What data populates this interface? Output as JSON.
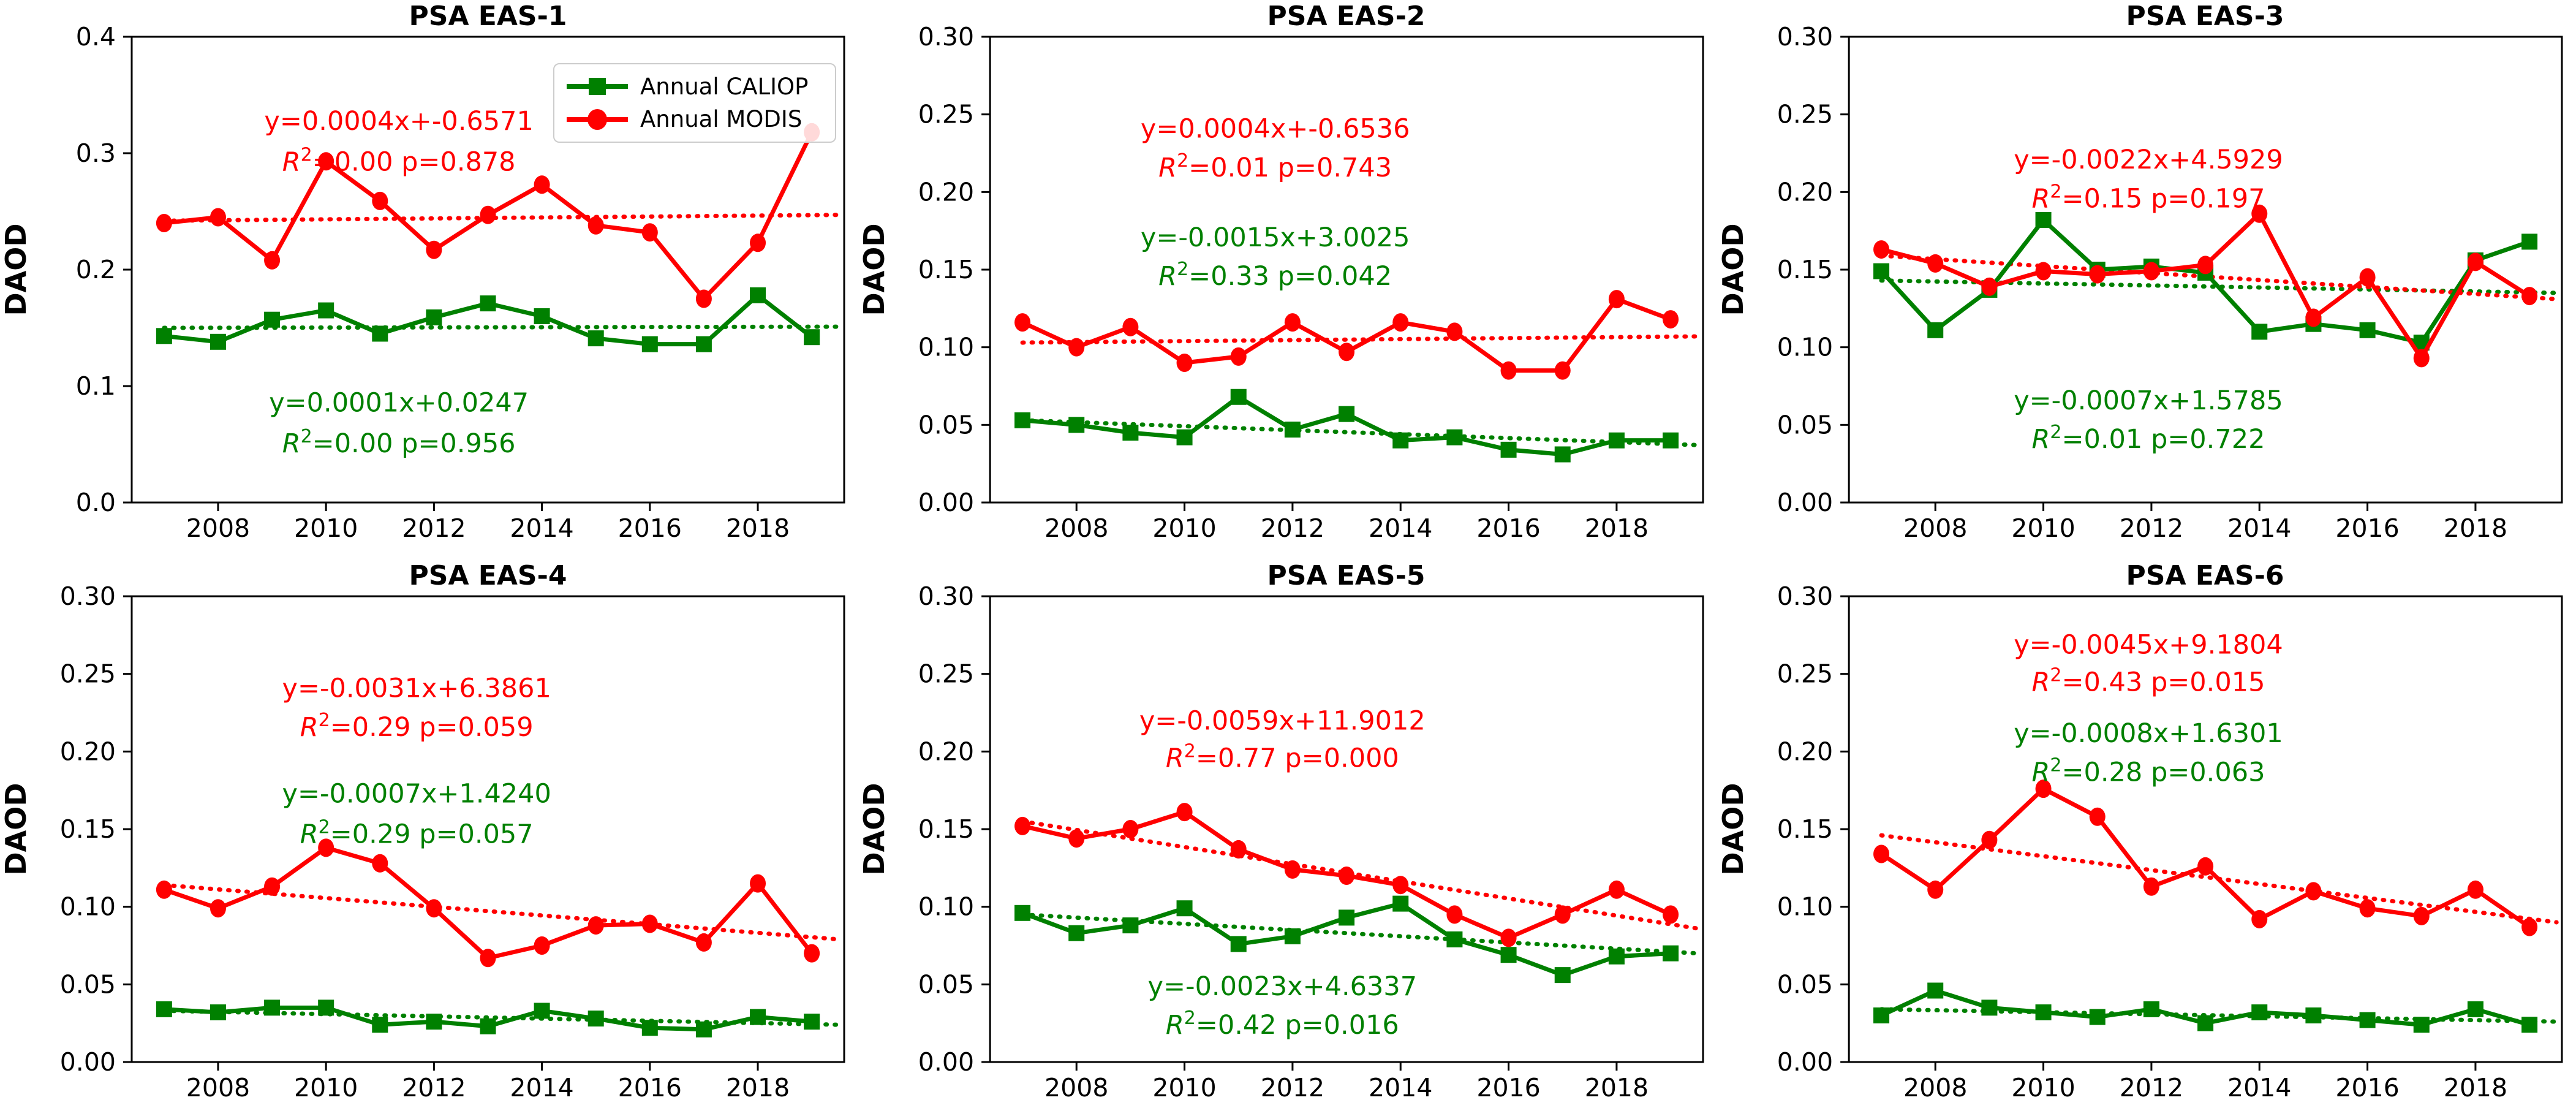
{
  "figure": {
    "ylabel": "DAOD",
    "background": "#ffffff",
    "axis_color": "#000000"
  },
  "legend": {
    "position": "top-right of first panel",
    "items": [
      {
        "label": "Annual CALIOP",
        "color": "#008000",
        "marker": "square"
      },
      {
        "label": "Annual MODIS",
        "color": "#ff0000",
        "marker": "circle"
      }
    ]
  },
  "chart_data": [
    {
      "type": "line",
      "title": "PSA EAS-1",
      "ylabel": "DAOD",
      "x": [
        2007,
        2008,
        2009,
        2010,
        2011,
        2012,
        2013,
        2014,
        2015,
        2016,
        2017,
        2018,
        2019
      ],
      "xticks": [
        2008,
        2010,
        2012,
        2014,
        2016,
        2018
      ],
      "xlim": [
        2006.4,
        2019.6
      ],
      "ylim": [
        0,
        0.4
      ],
      "yticks": [
        "0.0",
        "0.1",
        "0.2",
        "0.3",
        "0.4"
      ],
      "grid": false,
      "legend_visible": true,
      "series": [
        {
          "name": "Annual CALIOP",
          "color": "#008000",
          "marker": "square",
          "values": [
            0.143,
            0.138,
            0.157,
            0.165,
            0.145,
            0.159,
            0.171,
            0.16,
            0.141,
            0.136,
            0.136,
            0.178,
            0.142
          ],
          "trend": {
            "eq": "y=0.0001x+0.0247",
            "r2": "0.00",
            "p": "0.956",
            "start": 0.15,
            "end": 0.151
          }
        },
        {
          "name": "Annual MODIS",
          "color": "#ff0000",
          "marker": "circle",
          "values": [
            0.24,
            0.245,
            0.208,
            0.293,
            0.259,
            0.217,
            0.247,
            0.273,
            0.238,
            0.232,
            0.175,
            0.223,
            0.318
          ],
          "trend": {
            "eq": "y=0.0004x+-0.6571",
            "r2": "0.00",
            "p": "0.878",
            "start": 0.242,
            "end": 0.247
          }
        }
      ],
      "annotations": [
        {
          "series": "Annual MODIS",
          "color": "#ff0000",
          "x_frac": 0.375,
          "y_data": [
            0.328,
            0.293
          ]
        },
        {
          "series": "Annual CALIOP",
          "color": "#008000",
          "x_frac": 0.375,
          "y_data": [
            0.086,
            0.051
          ]
        }
      ]
    },
    {
      "type": "line",
      "title": "PSA EAS-2",
      "ylabel": "DAOD",
      "x": [
        2007,
        2008,
        2009,
        2010,
        2011,
        2012,
        2013,
        2014,
        2015,
        2016,
        2017,
        2018,
        2019
      ],
      "xticks": [
        2008,
        2010,
        2012,
        2014,
        2016,
        2018
      ],
      "xlim": [
        2006.4,
        2019.6
      ],
      "ylim": [
        0,
        0.3
      ],
      "yticks": [
        "0.00",
        "0.05",
        "0.10",
        "0.15",
        "0.20",
        "0.25",
        "0.30"
      ],
      "grid": false,
      "legend_visible": false,
      "series": [
        {
          "name": "Annual CALIOP",
          "color": "#008000",
          "marker": "square",
          "values": [
            0.053,
            0.05,
            0.045,
            0.042,
            0.068,
            0.047,
            0.057,
            0.04,
            0.042,
            0.034,
            0.031,
            0.04,
            0.04
          ],
          "trend": {
            "eq": "y=-0.0015x+3.0025",
            "r2": "0.33",
            "p": "0.042",
            "start": 0.053,
            "end": 0.037
          }
        },
        {
          "name": "Annual MODIS",
          "color": "#ff0000",
          "marker": "circle",
          "values": [
            0.116,
            0.1,
            0.113,
            0.09,
            0.094,
            0.116,
            0.097,
            0.116,
            0.11,
            0.085,
            0.085,
            0.131,
            0.118
          ],
          "trend": {
            "eq": "y=0.0004x+-0.6536",
            "r2": "0.01",
            "p": "0.743",
            "start": 0.103,
            "end": 0.107
          }
        }
      ],
      "annotations": [
        {
          "series": "Annual MODIS",
          "color": "#ff0000",
          "x_frac": 0.4,
          "y_data": [
            0.241,
            0.216
          ]
        },
        {
          "series": "Annual CALIOP",
          "color": "#008000",
          "x_frac": 0.4,
          "y_data": [
            0.171,
            0.146
          ]
        }
      ]
    },
    {
      "type": "line",
      "title": "PSA EAS-3",
      "ylabel": "DAOD",
      "x": [
        2007,
        2008,
        2009,
        2010,
        2011,
        2012,
        2013,
        2014,
        2015,
        2016,
        2017,
        2018,
        2019
      ],
      "xticks": [
        2008,
        2010,
        2012,
        2014,
        2016,
        2018
      ],
      "xlim": [
        2006.4,
        2019.6
      ],
      "ylim": [
        0,
        0.3
      ],
      "yticks": [
        "0.00",
        "0.05",
        "0.10",
        "0.15",
        "0.20",
        "0.25",
        "0.30"
      ],
      "grid": false,
      "legend_visible": false,
      "series": [
        {
          "name": "Annual CALIOP",
          "color": "#008000",
          "marker": "square",
          "values": [
            0.149,
            0.111,
            0.137,
            0.182,
            0.15,
            0.152,
            0.148,
            0.11,
            0.115,
            0.111,
            0.103,
            0.156,
            0.168
          ],
          "trend": {
            "eq": "y=-0.0007x+1.5785",
            "r2": "0.01",
            "p": "0.722",
            "start": 0.143,
            "end": 0.135
          }
        },
        {
          "name": "Annual MODIS",
          "color": "#ff0000",
          "marker": "circle",
          "values": [
            0.163,
            0.154,
            0.139,
            0.149,
            0.147,
            0.149,
            0.153,
            0.186,
            0.119,
            0.145,
            0.093,
            0.155,
            0.133
          ],
          "trend": {
            "eq": "y=-0.0022x+4.5929",
            "r2": "0.15",
            "p": "0.197",
            "start": 0.159,
            "end": 0.131
          }
        }
      ],
      "annotations": [
        {
          "series": "Annual MODIS",
          "color": "#ff0000",
          "x_frac": 0.42,
          "y_data": [
            0.221,
            0.196
          ]
        },
        {
          "series": "Annual CALIOP",
          "color": "#008000",
          "x_frac": 0.42,
          "y_data": [
            0.066,
            0.041
          ]
        }
      ]
    },
    {
      "type": "line",
      "title": "PSA EAS-4",
      "ylabel": "DAOD",
      "x": [
        2007,
        2008,
        2009,
        2010,
        2011,
        2012,
        2013,
        2014,
        2015,
        2016,
        2017,
        2018,
        2019
      ],
      "xticks": [
        2008,
        2010,
        2012,
        2014,
        2016,
        2018
      ],
      "xlim": [
        2006.4,
        2019.6
      ],
      "ylim": [
        0,
        0.3
      ],
      "yticks": [
        "0.00",
        "0.05",
        "0.10",
        "0.15",
        "0.20",
        "0.25",
        "0.30"
      ],
      "grid": false,
      "legend_visible": false,
      "series": [
        {
          "name": "Annual CALIOP",
          "color": "#008000",
          "marker": "square",
          "values": [
            0.034,
            0.032,
            0.035,
            0.035,
            0.024,
            0.026,
            0.023,
            0.033,
            0.028,
            0.022,
            0.021,
            0.029,
            0.026
          ],
          "trend": {
            "eq": "y=-0.0007x+1.4240",
            "r2": "0.29",
            "p": "0.057",
            "start": 0.033,
            "end": 0.024
          }
        },
        {
          "name": "Annual MODIS",
          "color": "#ff0000",
          "marker": "circle",
          "values": [
            0.111,
            0.099,
            0.113,
            0.138,
            0.128,
            0.099,
            0.067,
            0.075,
            0.088,
            0.089,
            0.077,
            0.115,
            0.07
          ],
          "trend": {
            "eq": "y=-0.0031x+6.3861",
            "r2": "0.29",
            "p": "0.059",
            "start": 0.114,
            "end": 0.079
          }
        }
      ],
      "annotations": [
        {
          "series": "Annual MODIS",
          "color": "#ff0000",
          "x_frac": 0.4,
          "y_data": [
            0.241,
            0.216
          ]
        },
        {
          "series": "Annual CALIOP",
          "color": "#008000",
          "x_frac": 0.4,
          "y_data": [
            0.173,
            0.147
          ]
        }
      ]
    },
    {
      "type": "line",
      "title": "PSA EAS-5",
      "ylabel": "DAOD",
      "x": [
        2007,
        2008,
        2009,
        2010,
        2011,
        2012,
        2013,
        2014,
        2015,
        2016,
        2017,
        2018,
        2019
      ],
      "xticks": [
        2008,
        2010,
        2012,
        2014,
        2016,
        2018
      ],
      "xlim": [
        2006.4,
        2019.6
      ],
      "ylim": [
        0,
        0.3
      ],
      "yticks": [
        "0.00",
        "0.05",
        "0.10",
        "0.15",
        "0.20",
        "0.25",
        "0.30"
      ],
      "grid": false,
      "legend_visible": false,
      "series": [
        {
          "name": "Annual CALIOP",
          "color": "#008000",
          "marker": "square",
          "values": [
            0.096,
            0.083,
            0.088,
            0.099,
            0.076,
            0.081,
            0.093,
            0.102,
            0.079,
            0.069,
            0.056,
            0.068,
            0.07
          ],
          "trend": {
            "eq": "y=-0.0023x+4.6337",
            "r2": "0.42",
            "p": "0.016",
            "start": 0.095,
            "end": 0.07
          }
        },
        {
          "name": "Annual MODIS",
          "color": "#ff0000",
          "marker": "circle",
          "values": [
            0.152,
            0.144,
            0.15,
            0.161,
            0.137,
            0.124,
            0.12,
            0.114,
            0.095,
            0.08,
            0.095,
            0.111,
            0.095
          ],
          "trend": {
            "eq": "y=-0.0059x+11.9012",
            "r2": "0.77",
            "p": "0.000",
            "start": 0.155,
            "end": 0.086
          }
        }
      ],
      "annotations": [
        {
          "series": "Annual MODIS",
          "color": "#ff0000",
          "x_frac": 0.41,
          "y_data": [
            0.22,
            0.196
          ]
        },
        {
          "series": "Annual CALIOP",
          "color": "#008000",
          "x_frac": 0.41,
          "y_data": [
            0.049,
            0.024
          ]
        }
      ]
    },
    {
      "type": "line",
      "title": "PSA EAS-6",
      "ylabel": "DAOD",
      "x": [
        2007,
        2008,
        2009,
        2010,
        2011,
        2012,
        2013,
        2014,
        2015,
        2016,
        2017,
        2018,
        2019
      ],
      "xticks": [
        2008,
        2010,
        2012,
        2014,
        2016,
        2018
      ],
      "xlim": [
        2006.4,
        2019.6
      ],
      "ylim": [
        0,
        0.3
      ],
      "yticks": [
        "0.00",
        "0.05",
        "0.10",
        "0.15",
        "0.20",
        "0.25",
        "0.30"
      ],
      "grid": false,
      "legend_visible": false,
      "series": [
        {
          "name": "Annual CALIOP",
          "color": "#008000",
          "marker": "square",
          "values": [
            0.03,
            0.046,
            0.035,
            0.032,
            0.029,
            0.034,
            0.025,
            0.032,
            0.03,
            0.027,
            0.024,
            0.034,
            0.024
          ],
          "trend": {
            "eq": "y=-0.0008x+1.6301",
            "r2": "0.28",
            "p": "0.063",
            "start": 0.034,
            "end": 0.026
          }
        },
        {
          "name": "Annual MODIS",
          "color": "#ff0000",
          "marker": "circle",
          "values": [
            0.134,
            0.111,
            0.143,
            0.176,
            0.158,
            0.113,
            0.126,
            0.092,
            0.11,
            0.099,
            0.094,
            0.111,
            0.087
          ],
          "trend": {
            "eq": "y=-0.0045x+9.1804",
            "r2": "0.43",
            "p": "0.015",
            "start": 0.146,
            "end": 0.09
          }
        }
      ],
      "annotations": [
        {
          "series": "Annual MODIS",
          "color": "#ff0000",
          "x_frac": 0.42,
          "y_data": [
            0.269,
            0.245
          ]
        },
        {
          "series": "Annual CALIOP",
          "color": "#008000",
          "x_frac": 0.42,
          "y_data": [
            0.212,
            0.187
          ]
        }
      ]
    }
  ]
}
